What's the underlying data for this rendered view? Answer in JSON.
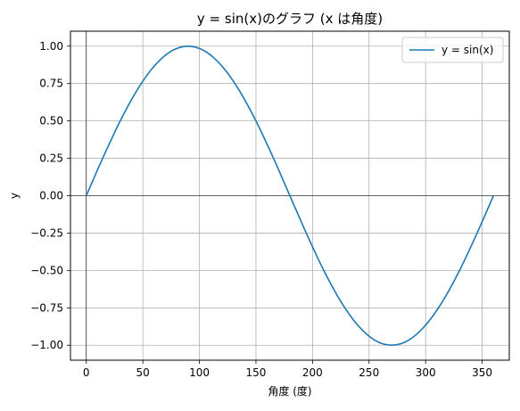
{
  "chart_data": {
    "type": "line",
    "title": "y = sin(x)のグラフ (x は角度)",
    "xlabel": "角度 (度)",
    "ylabel": "y",
    "xlim": [
      -14,
      374
    ],
    "ylim": [
      -1.1,
      1.1
    ],
    "x_ticks": [
      0,
      50,
      100,
      150,
      200,
      250,
      300,
      350
    ],
    "x_tick_labels": [
      "0",
      "50",
      "100",
      "150",
      "200",
      "250",
      "300",
      "350"
    ],
    "y_ticks": [
      -1.0,
      -0.75,
      -0.5,
      -0.25,
      0.0,
      0.25,
      0.5,
      0.75,
      1.0
    ],
    "y_tick_labels": [
      "−1.00",
      "−0.75",
      "−0.50",
      "−0.25",
      "0.00",
      "0.25",
      "0.50",
      "0.75",
      "1.00"
    ],
    "grid": true,
    "legend_position": "top-right",
    "reference_lines": {
      "horizontal_at": 0,
      "vertical_at": 0
    },
    "series": [
      {
        "name": "y = sin(x)",
        "color": "#1f77b4",
        "x": [
          0,
          15,
          30,
          45,
          60,
          75,
          90,
          105,
          120,
          135,
          150,
          165,
          180,
          195,
          210,
          225,
          240,
          255,
          270,
          285,
          300,
          315,
          330,
          345,
          360
        ],
        "y": [
          0.0,
          0.259,
          0.5,
          0.707,
          0.866,
          0.966,
          1.0,
          0.966,
          0.866,
          0.707,
          0.5,
          0.259,
          0.0,
          -0.259,
          -0.5,
          -0.707,
          -0.866,
          -0.966,
          -1.0,
          -0.966,
          -0.866,
          -0.707,
          -0.5,
          -0.259,
          0.0
        ]
      }
    ]
  }
}
